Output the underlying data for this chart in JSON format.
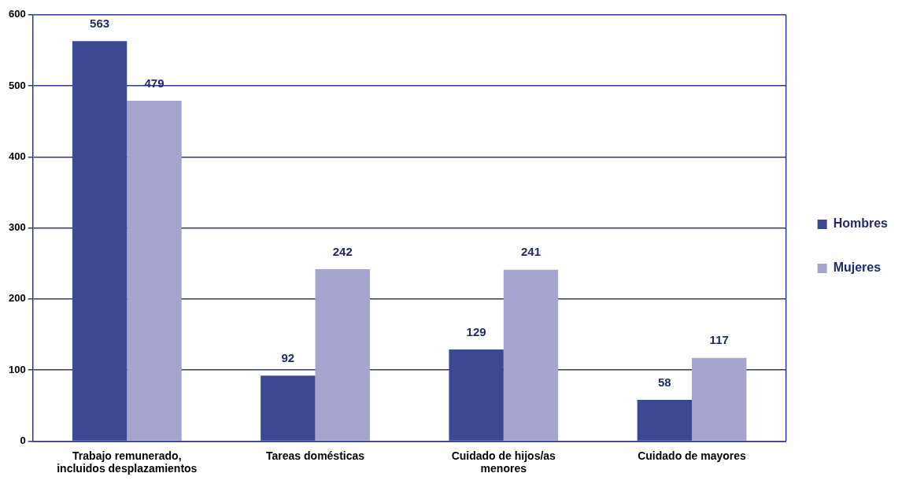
{
  "chart_data": {
    "type": "bar",
    "categories": [
      "Trabajo remunerado, incluidos desplazamientos",
      "Tareas domésticas",
      "Cuidado de hijos/as menores",
      "Cuidado de mayores"
    ],
    "series": [
      {
        "name": "Hombres",
        "color": "#3c4894",
        "values": [
          563,
          92,
          129,
          58
        ]
      },
      {
        "name": "Mujeres",
        "color": "#a4a4cc",
        "values": [
          479,
          242,
          241,
          117
        ]
      }
    ],
    "ylim": [
      0,
      600
    ],
    "yticks": [
      0,
      100,
      200,
      300,
      400,
      500,
      600
    ],
    "grid": "y",
    "legend": "right",
    "data_labels": true
  }
}
